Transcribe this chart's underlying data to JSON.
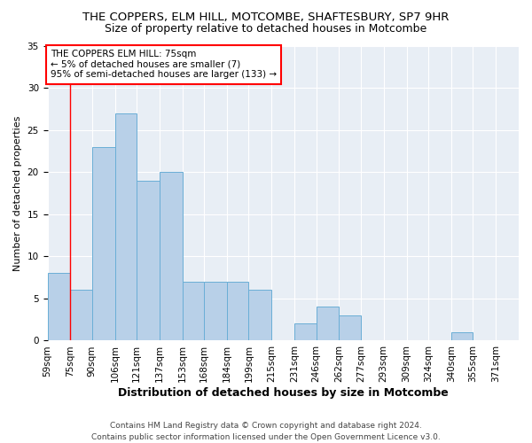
{
  "title1": "THE COPPERS, ELM HILL, MOTCOMBE, SHAFTESBURY, SP7 9HR",
  "title2": "Size of property relative to detached houses in Motcombe",
  "xlabel": "Distribution of detached houses by size in Motcombe",
  "ylabel": "Number of detached properties",
  "bins": [
    59,
    75,
    90,
    106,
    121,
    137,
    153,
    168,
    184,
    199,
    215,
    231,
    246,
    262,
    277,
    293,
    309,
    324,
    340,
    355,
    371
  ],
  "bin_labels": [
    "59sqm",
    "75sqm",
    "90sqm",
    "106sqm",
    "121sqm",
    "137sqm",
    "153sqm",
    "168sqm",
    "184sqm",
    "199sqm",
    "215sqm",
    "231sqm",
    "246sqm",
    "262sqm",
    "277sqm",
    "293sqm",
    "309sqm",
    "324sqm",
    "340sqm",
    "355sqm",
    "371sqm"
  ],
  "values": [
    8,
    6,
    23,
    27,
    19,
    20,
    7,
    7,
    7,
    6,
    0,
    2,
    4,
    3,
    0,
    0,
    0,
    0,
    1,
    0,
    0
  ],
  "bar_color": "#b8d0e8",
  "bar_edge_color": "#6aaed6",
  "vline_x": 75,
  "vline_color": "red",
  "annotation_text": "THE COPPERS ELM HILL: 75sqm\n← 5% of detached houses are smaller (7)\n95% of semi-detached houses are larger (133) →",
  "annotation_box_color": "white",
  "annotation_box_edge_color": "red",
  "ylim": [
    0,
    35
  ],
  "yticks": [
    0,
    5,
    10,
    15,
    20,
    25,
    30,
    35
  ],
  "bg_color": "#e8eef5",
  "footer": "Contains HM Land Registry data © Crown copyright and database right 2024.\nContains public sector information licensed under the Open Government Licence v3.0.",
  "title1_fontsize": 9.5,
  "title2_fontsize": 9,
  "xlabel_fontsize": 9,
  "ylabel_fontsize": 8,
  "tick_fontsize": 7.5,
  "footer_fontsize": 6.5
}
